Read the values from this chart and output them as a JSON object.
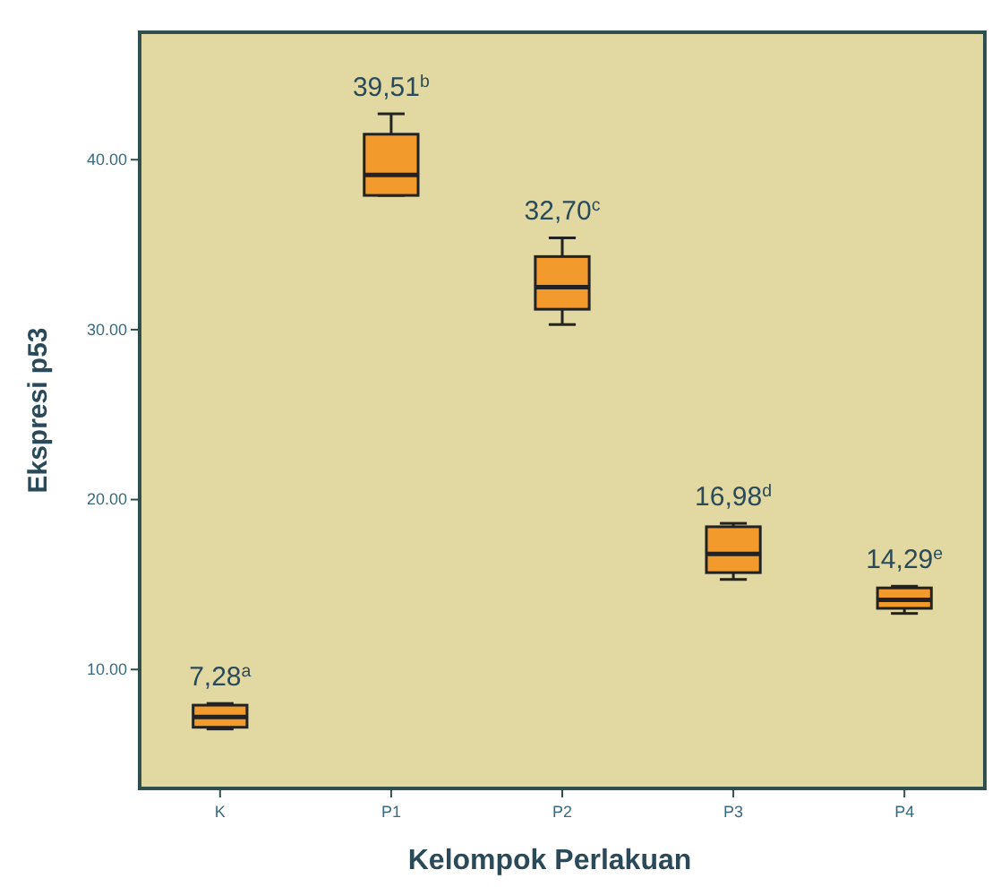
{
  "chart_data": {
    "type": "box",
    "xlabel": "Kelompok Perlakuan",
    "ylabel": "Ekspresi p53",
    "categories": [
      "K",
      "P1",
      "P2",
      "P3",
      "P4"
    ],
    "boxes": [
      {
        "low": 6.5,
        "q1": 6.6,
        "median": 7.2,
        "q3": 7.9,
        "high": 8.0
      },
      {
        "low": 37.9,
        "q1": 37.9,
        "median": 39.1,
        "q3": 41.5,
        "high": 42.7
      },
      {
        "low": 30.3,
        "q1": 31.2,
        "median": 32.5,
        "q3": 34.3,
        "high": 35.4
      },
      {
        "low": 15.3,
        "q1": 15.7,
        "median": 16.8,
        "q3": 18.4,
        "high": 18.6
      },
      {
        "low": 13.3,
        "q1": 13.6,
        "median": 14.1,
        "q3": 14.8,
        "high": 14.9
      }
    ],
    "color": "#f39a2c",
    "ylim": [
      3,
      47.5
    ],
    "yticks": [
      {
        "value": 10,
        "label": "10.00"
      },
      {
        "value": 20,
        "label": "20.00"
      },
      {
        "value": 30,
        "label": "30.00"
      },
      {
        "value": 40,
        "label": "40.00"
      }
    ],
    "annotations": [
      "7,28$^{a}$",
      "39,51$^{b}$",
      "32,70$^{c}$",
      "16,98$^{d}$",
      "14,29$^{e}$"
    ],
    "grid": false
  }
}
